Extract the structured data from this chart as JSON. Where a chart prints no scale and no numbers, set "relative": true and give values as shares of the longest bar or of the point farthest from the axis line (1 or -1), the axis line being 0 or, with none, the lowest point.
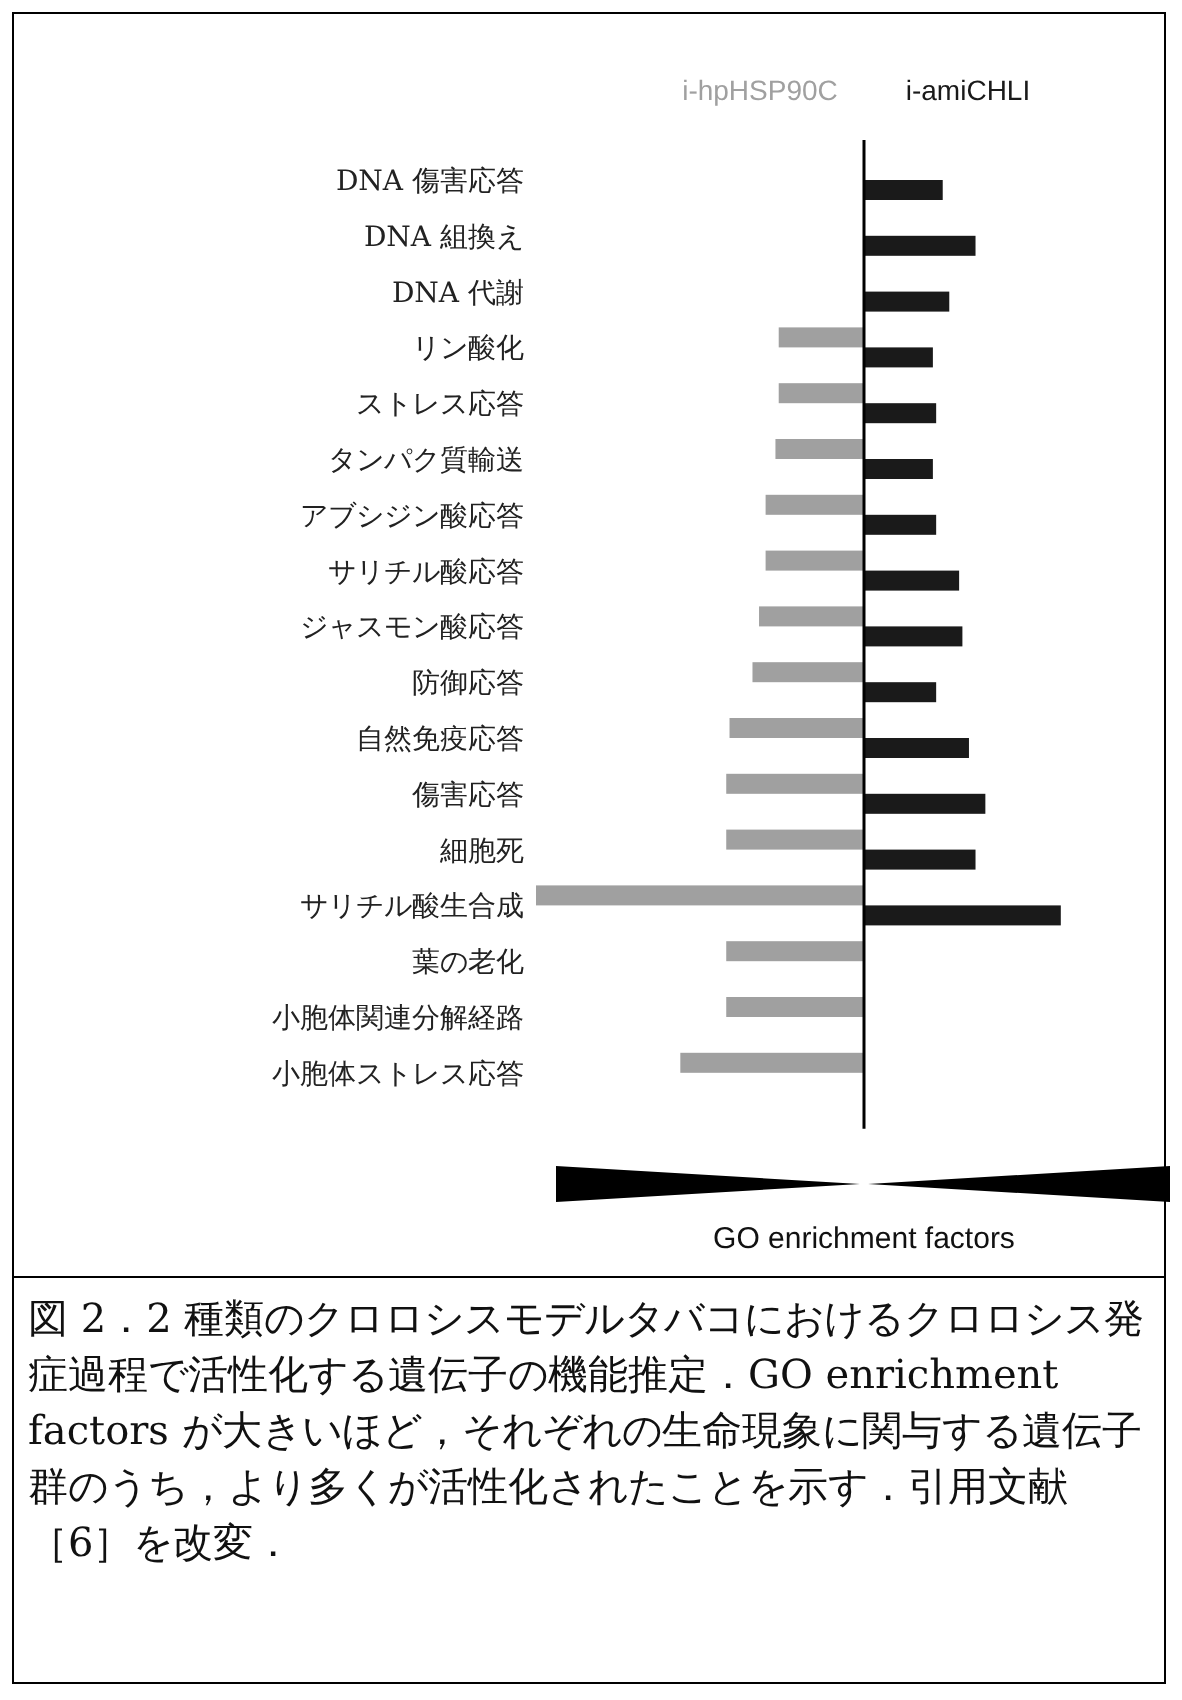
{
  "chart_data": {
    "type": "bar",
    "orientation": "horizontal",
    "relative": true,
    "legend": "top",
    "xlabel": "GO enrichment factors",
    "categories": [
      "DNA 傷害応答",
      "DNA 組換え",
      "DNA 代謝",
      "リン酸化",
      "ストレス応答",
      "タンパク質輸送",
      "アブシジン酸応答",
      "サリチル酸応答",
      "ジャスモン酸応答",
      "防御応答",
      "自然免疫応答",
      "傷害応答",
      "細胞死",
      "サリチル酸生合成",
      "葉の老化",
      "小胞体関連分解経路",
      "小胞体ストレス応答"
    ],
    "series": [
      {
        "name": "i-hpHSP90C",
        "color": "#a0a0a0",
        "values": [
          null,
          null,
          null,
          -0.26,
          -0.26,
          -0.27,
          -0.3,
          -0.3,
          -0.32,
          -0.34,
          -0.41,
          -0.42,
          -0.42,
          -1,
          -0.42,
          -0.42,
          -0.56
        ]
      },
      {
        "name": "i-amiCHLI",
        "color": "#1a1a1a",
        "values": [
          0.24,
          0.34,
          0.26,
          0.21,
          0.22,
          0.21,
          0.22,
          0.29,
          0.3,
          0.22,
          0.32,
          0.37,
          0.34,
          0.6,
          null,
          null,
          null
        ]
      }
    ],
    "annotations": [
      "図 2．2 種類のクロロシスモデルタバコにおけるクロロシス発症過程で活性化する遺伝子の機能推定．GO enrichment factors が大きいほど，それぞれの生命現象に関与する遺伝子群のうち，より多くが活性化されたことを示す．引用文献［6］を改変．"
    ]
  }
}
